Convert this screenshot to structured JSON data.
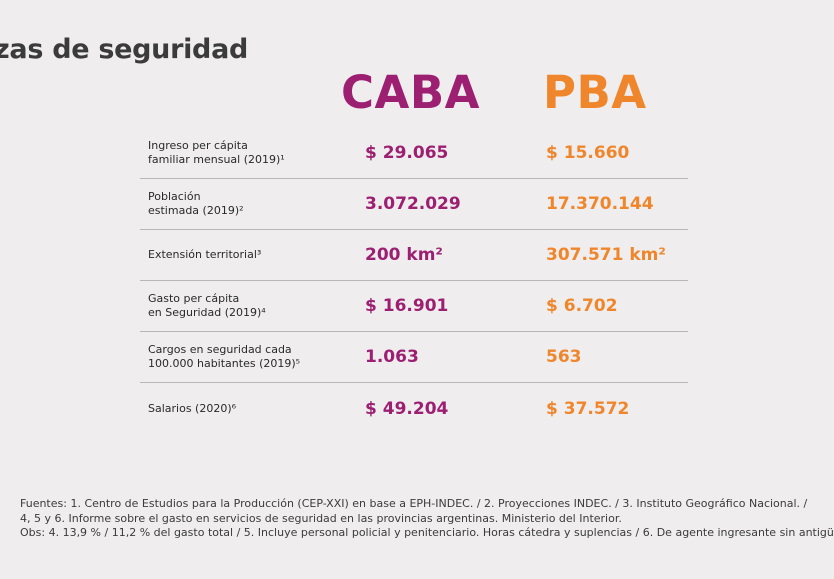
{
  "title": "zas de seguridad",
  "columns": {
    "caba": "CABA",
    "pba": "PBA"
  },
  "rows": [
    {
      "label": "Ingreso per cápita\nfamiliar mensual (2019)¹",
      "caba": "$ 29.065",
      "pba": "$ 15.660"
    },
    {
      "label": "Población\nestimada (2019)²",
      "caba": "3.072.029",
      "pba": "17.370.144"
    },
    {
      "label": "Extensión territorial³",
      "caba": "200 km²",
      "pba": "307.571 km²"
    },
    {
      "label": "Gasto per cápita\nen Seguridad (2019)⁴",
      "caba": "$ 16.901",
      "pba": "$ 6.702"
    },
    {
      "label": "Cargos en seguridad cada\n100.000 habitantes (2019)⁵",
      "caba": "1.063",
      "pba": "563"
    },
    {
      "label": "Salarios (2020)⁶",
      "caba": "$ 49.204",
      "pba": "$ 37.572"
    }
  ],
  "footer": {
    "line1": "Fuentes: 1. Centro de Estudios para la Producción (CEP-XXI) en base a EPH-INDEC. / 2. Proyecciones INDEC. / 3. Instituto Geográfico Nacional. /",
    "line2": "4, 5 y 6. Informe sobre el gasto en servicios de seguridad en las provincias argentinas. Ministerio del Interior.",
    "line3": "Obs: 4. 13,9 % / 11,2 % del gasto total / 5. Incluye personal policial y penitenciario. Horas cátedra y suplencias / 6. De agente ingresante sin antigü"
  },
  "colors": {
    "caba": "#9c1f72",
    "pba": "#f0862c",
    "background": "#efedee"
  }
}
